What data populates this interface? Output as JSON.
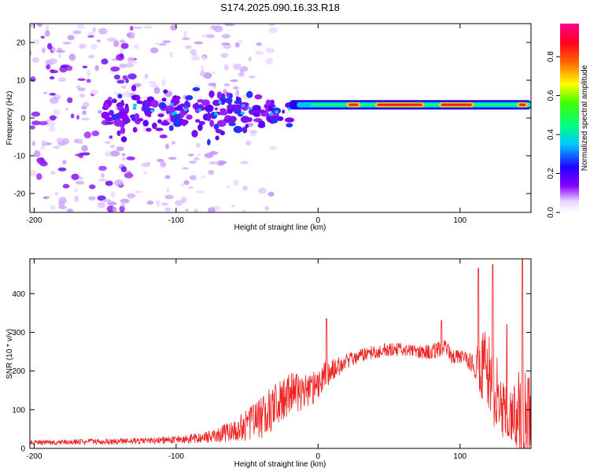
{
  "title": "S174.2025.090.16.33.R18",
  "chart_data": [
    {
      "type": "heatmap",
      "xlabel": "Height of straight line (km)",
      "ylabel": "Frequency (Hz)",
      "xlim": [
        -203,
        150
      ],
      "ylim": [
        -25,
        25
      ],
      "xticks": [
        -200,
        -100,
        0,
        100
      ],
      "yticks": [
        -20,
        -10,
        0,
        10,
        20
      ],
      "colorbar": {
        "label": "Normalized spectral amplitude",
        "range": [
          0,
          0.97
        ],
        "ticks": [
          0.0,
          0.2,
          0.4,
          0.6,
          0.8
        ],
        "colormap": [
          "#ffffff",
          "#e8d8ff",
          "#8800ff",
          "#2200ff",
          "#00c8ff",
          "#00ff60",
          "#ccff00",
          "#ffaa00",
          "#ff2200",
          "#ff00aa"
        ]
      },
      "carrier_frequency_hz": 3.5,
      "scatter_region_km": [
        -203,
        -20
      ],
      "coherent_region_km": [
        -20,
        150
      ],
      "peak_band_km": [
        [
          20,
          30
        ],
        [
          40,
          75
        ],
        [
          85,
          110
        ],
        [
          140,
          148
        ]
      ]
    },
    {
      "type": "line",
      "xlabel": "Height of straight line (km)",
      "ylabel": "SNR (10 * v/v)",
      "xlim": [
        -203,
        150
      ],
      "ylim": [
        0,
        490
      ],
      "xticks": [
        -200,
        -100,
        0,
        100
      ],
      "yticks": [
        0,
        100,
        200,
        300,
        400
      ],
      "color": "#ee2222",
      "envelope": {
        "x": [
          -203,
          -180,
          -160,
          -140,
          -120,
          -100,
          -80,
          -70,
          -60,
          -50,
          -40,
          -30,
          -20,
          -10,
          0,
          5,
          10,
          20,
          30,
          40,
          50,
          60,
          70,
          80,
          85,
          90,
          95,
          100,
          105,
          110,
          115,
          120,
          125,
          130,
          135,
          140,
          145,
          150
        ],
        "mean": [
          15,
          16,
          17,
          18,
          20,
          22,
          28,
          35,
          45,
          60,
          80,
          110,
          140,
          150,
          160,
          190,
          200,
          225,
          240,
          250,
          255,
          255,
          250,
          250,
          255,
          260,
          235,
          240,
          225,
          220,
          200,
          200,
          150,
          100,
          80,
          100,
          80,
          100
        ],
        "noise": [
          12,
          14,
          15,
          15,
          18,
          20,
          28,
          40,
          60,
          80,
          110,
          120,
          120,
          100,
          80,
          70,
          60,
          40,
          35,
          35,
          35,
          35,
          35,
          40,
          40,
          45,
          40,
          40,
          40,
          60,
          200,
          240,
          220,
          150,
          120,
          200,
          250,
          200
        ]
      },
      "spikes": [
        [
          6,
          335
        ],
        [
          87,
          330
        ],
        [
          113,
          465
        ],
        [
          123,
          475
        ],
        [
          133,
          320
        ],
        [
          144,
          490
        ],
        [
          148,
          180
        ]
      ]
    }
  ]
}
